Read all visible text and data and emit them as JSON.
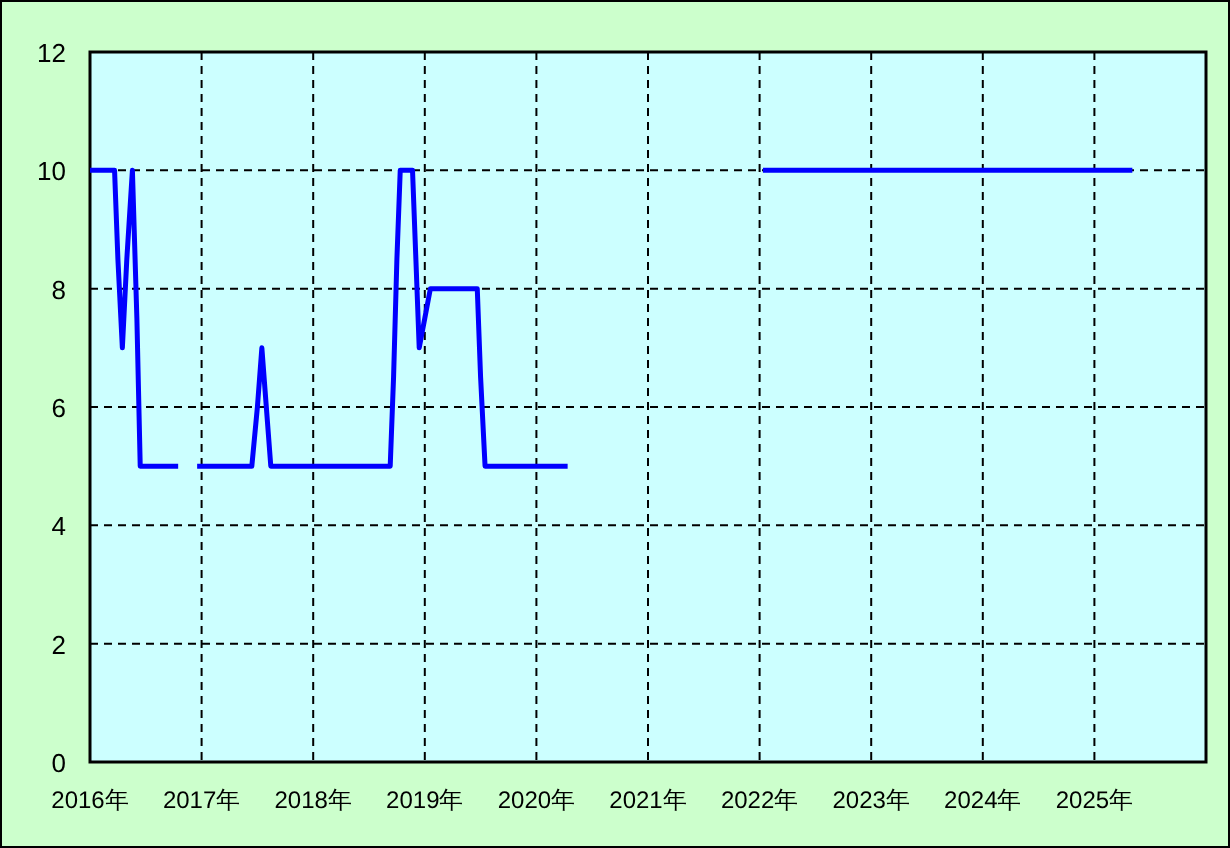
{
  "chart_data": {
    "type": "line",
    "series": [
      {
        "color": "#0000ff",
        "x": [
          2016.0,
          2016.22,
          2016.25,
          2016.29,
          2016.33,
          2016.38,
          2016.42,
          2016.45,
          2016.79
        ],
        "values": [
          10,
          10,
          8.5,
          7,
          8.5,
          10,
          7.5,
          5,
          5
        ]
      },
      {
        "color": "#0000ff",
        "x": [
          2016.96,
          2017.45,
          2017.5,
          2017.54,
          2017.58,
          2017.62,
          2018.69,
          2018.72,
          2018.75,
          2018.78,
          2018.89,
          2018.92,
          2018.95,
          2019.0,
          2019.05,
          2019.47,
          2019.5,
          2019.54,
          2020.28
        ],
        "values": [
          5,
          5,
          6,
          7,
          6,
          5,
          5,
          6.5,
          8.5,
          10,
          10,
          8.5,
          7,
          7.5,
          8,
          8,
          6.5,
          5,
          5
        ]
      },
      {
        "color": "#0000ff",
        "x": [
          2022.03,
          2025.34
        ],
        "values": [
          10,
          10
        ]
      }
    ],
    "xlim": [
      2016,
      2026
    ],
    "ylim": [
      0,
      12
    ],
    "xticks": [
      {
        "value": 2016,
        "label": "2016年"
      },
      {
        "value": 2017,
        "label": "2017年"
      },
      {
        "value": 2018,
        "label": "2018年"
      },
      {
        "value": 2019,
        "label": "2019年"
      },
      {
        "value": 2020,
        "label": "2020年"
      },
      {
        "value": 2021,
        "label": "2021年"
      },
      {
        "value": 2022,
        "label": "2022年"
      },
      {
        "value": 2023,
        "label": "2023年"
      },
      {
        "value": 2024,
        "label": "2024年"
      },
      {
        "value": 2025,
        "label": "2025年"
      }
    ],
    "yticks": [
      0,
      2,
      4,
      6,
      8,
      10,
      12
    ],
    "grid": true
  }
}
